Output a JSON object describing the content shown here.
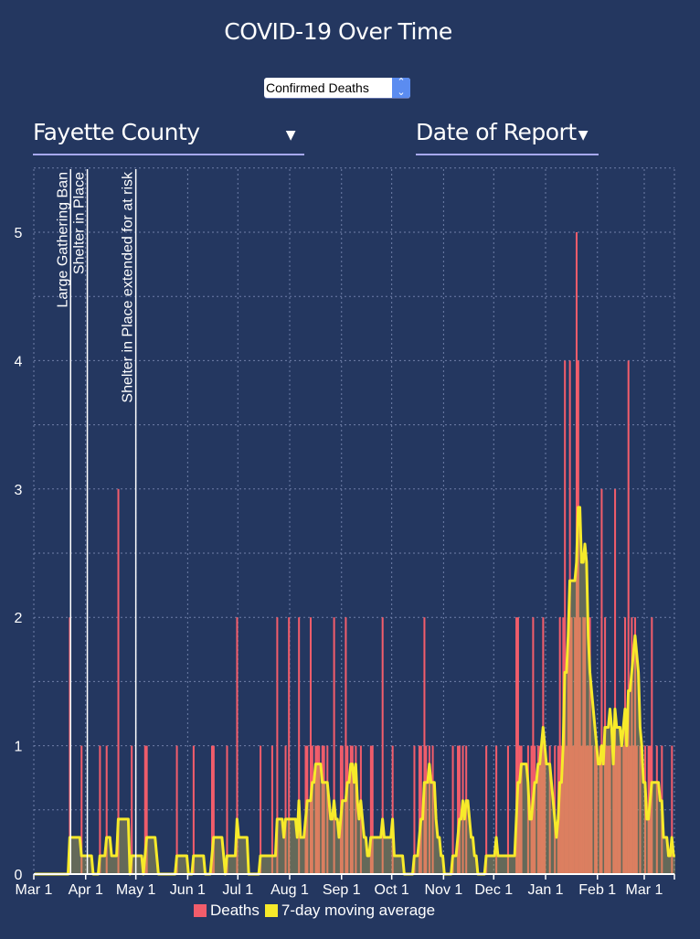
{
  "title": "COVID-19 Over Time",
  "metric_select": {
    "value": "Confirmed Deaths",
    "icon": "up-down-stepper-icon"
  },
  "county_dropdown": {
    "value": "Fayette County",
    "icon": "caret-down-icon"
  },
  "date_dropdown": {
    "value": "Date of Report",
    "icon": "caret-down-icon"
  },
  "colors": {
    "background": "#243760",
    "deaths": "#f25d6b",
    "average": "#f7ea2a",
    "grid": "#6f7fa8"
  },
  "chart_data": {
    "type": "bar",
    "title": "COVID-19 Over Time",
    "xlabel": "",
    "ylabel": "",
    "start_date": "Mar 1",
    "total_days": 384,
    "ylim": [
      0,
      5.5
    ],
    "yticks": [
      0,
      1,
      2,
      3,
      4,
      5
    ],
    "grid": true,
    "xticks": [
      {
        "day": 0,
        "label": "Mar 1"
      },
      {
        "day": 31,
        "label": "Apr 1"
      },
      {
        "day": 61,
        "label": "May 1"
      },
      {
        "day": 92,
        "label": "Jun 1"
      },
      {
        "day": 122,
        "label": "Jul 1"
      },
      {
        "day": 153,
        "label": "Aug 1"
      },
      {
        "day": 184,
        "label": "Sep 1"
      },
      {
        "day": 214,
        "label": "Oct 1"
      },
      {
        "day": 245,
        "label": "Nov 1"
      },
      {
        "day": 275,
        "label": "Dec 1"
      },
      {
        "day": 306,
        "label": "Jan 1"
      },
      {
        "day": 337,
        "label": "Feb 1"
      },
      {
        "day": 365,
        "label": "Mar 1"
      }
    ],
    "legend": {
      "position": "bottom",
      "items": [
        {
          "name": "Deaths",
          "key": "deaths"
        },
        {
          "name": "7-day moving average",
          "key": "average"
        }
      ]
    },
    "annotations": [
      {
        "day": 22,
        "label": "Large Gathering Ban"
      },
      {
        "day": 32,
        "label": "Shelter in Place"
      },
      {
        "day": 61,
        "label": "Shelter in Place extended for at risk"
      }
    ],
    "series": [
      {
        "name": "Deaths",
        "type": "bar",
        "nonzero_days": [
          [
            21,
            2
          ],
          [
            28,
            1
          ],
          [
            39,
            1
          ],
          [
            43,
            1
          ],
          [
            50,
            3
          ],
          [
            58,
            1
          ],
          [
            66,
            1
          ],
          [
            67,
            1
          ],
          [
            85,
            1
          ],
          [
            95,
            1
          ],
          [
            106,
            1
          ],
          [
            107,
            1
          ],
          [
            115,
            1
          ],
          [
            121,
            2
          ],
          [
            135,
            1
          ],
          [
            142,
            1
          ],
          [
            145,
            2
          ],
          [
            150,
            1
          ],
          [
            152,
            2
          ],
          [
            158,
            2
          ],
          [
            162,
            1
          ],
          [
            163,
            1
          ],
          [
            165,
            2
          ],
          [
            166,
            1
          ],
          [
            168,
            1
          ],
          [
            169,
            1
          ],
          [
            170,
            1
          ],
          [
            172,
            1
          ],
          [
            173,
            1
          ],
          [
            175,
            1
          ],
          [
            179,
            2
          ],
          [
            183,
            1
          ],
          [
            184,
            1
          ],
          [
            186,
            2
          ],
          [
            187,
            1
          ],
          [
            189,
            1
          ],
          [
            190,
            1
          ],
          [
            192,
            1
          ],
          [
            195,
            1
          ],
          [
            201,
            1
          ],
          [
            202,
            1
          ],
          [
            208,
            2
          ],
          [
            214,
            1
          ],
          [
            227,
            1
          ],
          [
            230,
            1
          ],
          [
            231,
            1
          ],
          [
            233,
            2
          ],
          [
            234,
            1
          ],
          [
            236,
            1
          ],
          [
            238,
            1
          ],
          [
            250,
            1
          ],
          [
            253,
            1
          ],
          [
            254,
            1
          ],
          [
            256,
            1
          ],
          [
            258,
            1
          ],
          [
            270,
            1
          ],
          [
            276,
            1
          ],
          [
            283,
            1
          ],
          [
            288,
            2
          ],
          [
            289,
            2
          ],
          [
            290,
            1
          ],
          [
            291,
            1
          ],
          [
            295,
            1
          ],
          [
            297,
            1
          ],
          [
            298,
            2
          ],
          [
            299,
            1
          ],
          [
            301,
            1
          ],
          [
            302,
            1
          ],
          [
            303,
            1
          ],
          [
            304,
            2
          ],
          [
            305,
            1
          ],
          [
            308,
            1
          ],
          [
            311,
            1
          ],
          [
            313,
            1
          ],
          [
            314,
            2
          ],
          [
            315,
            1
          ],
          [
            316,
            2
          ],
          [
            317,
            4
          ],
          [
            318,
            1
          ],
          [
            319,
            2
          ],
          [
            320,
            4
          ],
          [
            321,
            2
          ],
          [
            322,
            1
          ],
          [
            323,
            2
          ],
          [
            324,
            5
          ],
          [
            325,
            4
          ],
          [
            326,
            2
          ],
          [
            327,
            1
          ],
          [
            328,
            2
          ],
          [
            329,
            2
          ],
          [
            330,
            1
          ],
          [
            331,
            1
          ],
          [
            332,
            2
          ],
          [
            333,
            1
          ],
          [
            335,
            1
          ],
          [
            336,
            1
          ],
          [
            338,
            1
          ],
          [
            339,
            3
          ],
          [
            341,
            2
          ],
          [
            342,
            1
          ],
          [
            343,
            1
          ],
          [
            344,
            1
          ],
          [
            346,
            1
          ],
          [
            347,
            3
          ],
          [
            348,
            1
          ],
          [
            349,
            1
          ],
          [
            350,
            1
          ],
          [
            352,
            1
          ],
          [
            353,
            2
          ],
          [
            354,
            1
          ],
          [
            355,
            4
          ],
          [
            356,
            1
          ],
          [
            357,
            2
          ],
          [
            358,
            1
          ],
          [
            359,
            2
          ],
          [
            360,
            1
          ],
          [
            362,
            1
          ],
          [
            365,
            1
          ],
          [
            367,
            1
          ],
          [
            368,
            1
          ],
          [
            369,
            2
          ],
          [
            372,
            1
          ],
          [
            375,
            1
          ],
          [
            381,
            1
          ]
        ]
      },
      {
        "name": "7-day moving average",
        "type": "line",
        "window": 7
      }
    ]
  }
}
